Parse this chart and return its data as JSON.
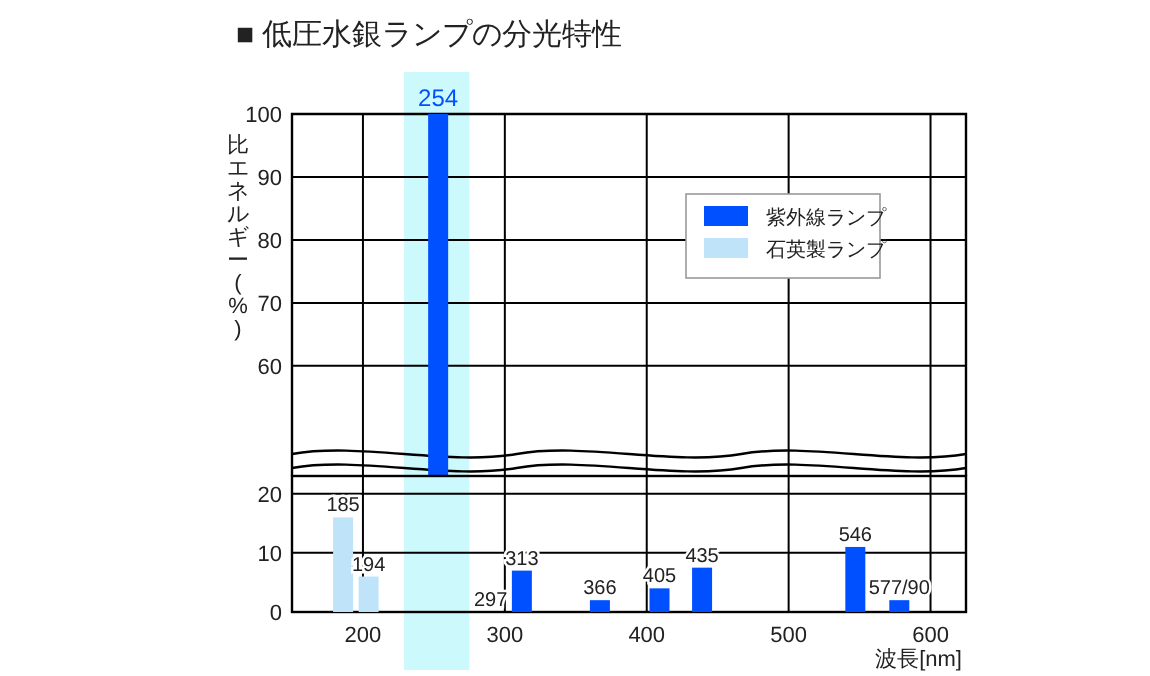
{
  "chart_data": [
    {
      "type": "bar",
      "title": "■ 低圧水銀ランプの分光特性",
      "ylabel": "比エネルギー(%)",
      "xlim": [
        150,
        625
      ],
      "xticks": [
        200,
        300,
        400,
        500,
        600
      ],
      "ylim": [
        46,
        100
      ],
      "yticks": [
        60,
        70,
        80,
        90,
        100
      ],
      "tick_labels": "y",
      "grid": true,
      "legend": "top right",
      "series": [
        {
          "name": "紫外線ランプ",
          "color": "#0050ff",
          "x": [
            253
          ],
          "values": [
            100
          ]
        },
        {
          "name": "石英製ランプ",
          "color": "#bfe4fa"
        }
      ],
      "annotations": [
        {
          "text": "254",
          "x": 253,
          "y": 100
        }
      ],
      "bands": [
        {
          "axis": "x",
          "from": 229,
          "to": 275,
          "color": "#ccf9fc"
        }
      ]
    },
    {
      "type": "bar",
      "xlabel": "波長[nm]",
      "xlim": [
        150,
        625
      ],
      "xticks": [
        200,
        300,
        400,
        500,
        600
      ],
      "ylim": [
        0,
        23
      ],
      "yticks": [
        0,
        10,
        20
      ],
      "grid": true,
      "series": [
        {
          "color": "#0050ff",
          "x": [
            290,
            312,
            367,
            409,
            439,
            547,
            578
          ],
          "values": [
            0,
            7,
            2,
            4,
            7.5,
            11,
            2
          ]
        },
        {
          "color": "#bfe4fa",
          "x": [
            186,
            204
          ],
          "values": [
            16,
            6
          ]
        }
      ],
      "annotations": [
        {
          "text": "185",
          "x": 186,
          "y": 16
        },
        {
          "text": "194",
          "x": 204,
          "y": 6
        },
        {
          "text": "297",
          "x": 290,
          "y": 0
        },
        {
          "text": "313",
          "x": 312,
          "y": 7
        },
        {
          "text": "366",
          "x": 367,
          "y": 2
        },
        {
          "text": "405",
          "x": 409,
          "y": 4
        },
        {
          "text": "435",
          "x": 439,
          "y": 7.5
        },
        {
          "text": "546",
          "x": 547,
          "y": 11
        },
        {
          "text": "577/90",
          "x": 578,
          "y": 2
        }
      ],
      "bands": [
        {
          "axis": "x",
          "from": 229,
          "to": 275,
          "color": "#ccf9fc"
        }
      ]
    }
  ]
}
